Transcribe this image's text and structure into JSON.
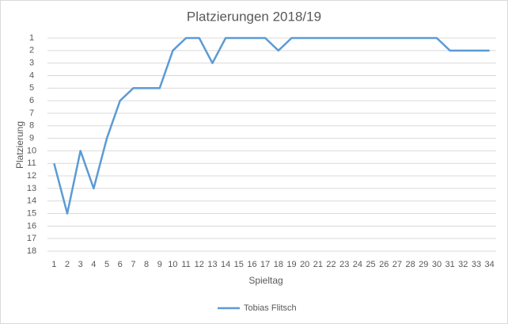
{
  "chart_data": {
    "type": "line",
    "title": "Platzierungen 2018/19",
    "x_label": "Spieltag",
    "y_label": "Platzierung",
    "categories": [
      "1",
      "2",
      "3",
      "4",
      "5",
      "6",
      "7",
      "8",
      "9",
      "10",
      "11",
      "12",
      "13",
      "14",
      "15",
      "16",
      "17",
      "18",
      "19",
      "20",
      "21",
      "22",
      "23",
      "24",
      "25",
      "26",
      "27",
      "28",
      "29",
      "30",
      "31",
      "32",
      "33",
      "34"
    ],
    "series": [
      {
        "name": "Tobias Flitsch",
        "color": "#5b9bd5",
        "values": [
          11,
          15,
          10,
          13,
          9,
          6,
          5,
          5,
          5,
          2,
          1,
          1,
          3,
          1,
          1,
          1,
          1,
          2,
          1,
          1,
          1,
          1,
          1,
          1,
          1,
          1,
          1,
          1,
          1,
          1,
          2,
          2,
          2,
          2
        ]
      }
    ],
    "ylim": [
      1,
      18
    ],
    "y_inverted": true,
    "yticks": [
      1,
      2,
      3,
      4,
      5,
      6,
      7,
      8,
      9,
      10,
      11,
      12,
      13,
      14,
      15,
      16,
      17,
      18
    ],
    "grid": true,
    "legend": "bottom"
  }
}
